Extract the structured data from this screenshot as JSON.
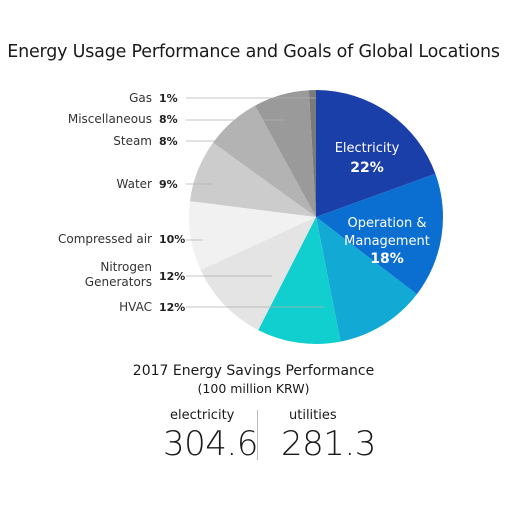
{
  "chart_data": {
    "type": "pie",
    "title": "Energy Usage Performance and Goals of Global Locations",
    "slices": [
      {
        "label": "Electricity",
        "display": "Electricity",
        "pct_label": "22%",
        "value": 22,
        "color": "#1a3fa8",
        "inside": true
      },
      {
        "label": "Operation & Management",
        "display": [
          "Operation &",
          "Management"
        ],
        "pct_label": "18%",
        "value": 18,
        "color": "#0b6fd1",
        "inside": true
      },
      {
        "label": "",
        "value": 13,
        "color": "#12a9d4"
      },
      {
        "label": "HVAC",
        "display": [
          "HVAC"
        ],
        "pct_label": "12%",
        "value": 12,
        "color": "#12cfcf"
      },
      {
        "label": "Nitrogen Generators",
        "display": [
          "Nitrogen",
          "Generators"
        ],
        "pct_label": "12%",
        "value": 12,
        "color": "#e4e4e4"
      },
      {
        "label": "Compressed air",
        "display": [
          "Compressed air"
        ],
        "pct_label": "10%",
        "value": 10,
        "color": "#f1f1f1"
      },
      {
        "label": "Water",
        "display": [
          "Water"
        ],
        "pct_label": "9%",
        "value": 9,
        "color": "#cccccc"
      },
      {
        "label": "Steam",
        "display": [
          "Steam"
        ],
        "pct_label": "8%",
        "value": 8,
        "color": "#b3b3b3"
      },
      {
        "label": "Miscellaneous",
        "display": [
          "Miscellaneous"
        ],
        "pct_label": "8%",
        "value": 8,
        "color": "#9a9a9a"
      },
      {
        "label": "Gas",
        "display": [
          "Gas"
        ],
        "pct_label": "1%",
        "value": 1,
        "color": "#7a7a7a"
      }
    ]
  },
  "summary": {
    "title": "2017 Energy Savings Performance",
    "unit": "(100 million KRW)",
    "items": [
      {
        "label": "electricity",
        "value": "304.6"
      },
      {
        "label": "utilities",
        "value": "281.3"
      }
    ]
  }
}
